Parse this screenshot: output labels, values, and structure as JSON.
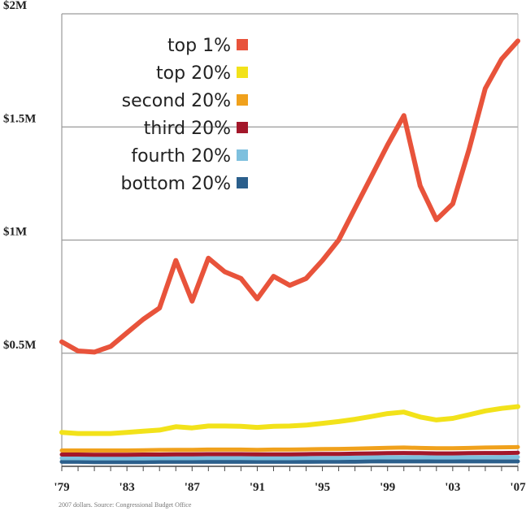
{
  "chart_data": {
    "type": "line",
    "title": "",
    "xlabel": "",
    "ylabel": "",
    "x": [
      1979,
      1980,
      1981,
      1982,
      1983,
      1984,
      1985,
      1986,
      1987,
      1988,
      1989,
      1990,
      1991,
      1992,
      1993,
      1994,
      1995,
      1996,
      1997,
      1998,
      1999,
      2000,
      2001,
      2002,
      2003,
      2004,
      2005,
      2006,
      2007
    ],
    "xlim": [
      1979,
      2007
    ],
    "ylim": [
      0,
      2000000
    ],
    "y_ticks": [
      {
        "value": 500000,
        "label": "$0.5M"
      },
      {
        "value": 1000000,
        "label": "$1M"
      },
      {
        "value": 1500000,
        "label": "$1.5M"
      },
      {
        "value": 2000000,
        "label": "$2M"
      }
    ],
    "x_ticks": [
      {
        "value": 1979,
        "label": "'79"
      },
      {
        "value": 1983,
        "label": "'83"
      },
      {
        "value": 1987,
        "label": "'87"
      },
      {
        "value": 1991,
        "label": "'91"
      },
      {
        "value": 1995,
        "label": "'95"
      },
      {
        "value": 1999,
        "label": "'99"
      },
      {
        "value": 2003,
        "label": "'03"
      },
      {
        "value": 2007,
        "label": "'07"
      }
    ],
    "grid": true,
    "legend_position": "top-right",
    "series": [
      {
        "name": "top 1%",
        "color": "#e8533b",
        "values": [
          550000,
          510000,
          505000,
          530000,
          590000,
          650000,
          700000,
          910000,
          730000,
          920000,
          860000,
          830000,
          740000,
          840000,
          800000,
          830000,
          910000,
          1000000,
          1140000,
          1280000,
          1420000,
          1550000,
          1240000,
          1090000,
          1160000,
          1400000,
          1670000,
          1800000,
          1880000
        ]
      },
      {
        "name": "top 20%",
        "color": "#f2e21a",
        "values": [
          150000,
          145000,
          145000,
          145000,
          150000,
          155000,
          160000,
          175000,
          170000,
          178000,
          178000,
          177000,
          172000,
          177000,
          178000,
          182000,
          190000,
          198000,
          208000,
          220000,
          233000,
          240000,
          218000,
          205000,
          212000,
          228000,
          245000,
          256000,
          264000
        ]
      },
      {
        "name": "second 20%",
        "color": "#f0a11c",
        "values": [
          70000,
          70000,
          70000,
          70000,
          70000,
          71000,
          72000,
          73000,
          73000,
          74000,
          74000,
          74000,
          73000,
          74000,
          74000,
          75000,
          76000,
          77000,
          78000,
          80000,
          82000,
          83000,
          81000,
          80000,
          80000,
          81000,
          83000,
          84000,
          85000
        ]
      },
      {
        "name": "third 20%",
        "color": "#a3172a",
        "values": [
          52000,
          52000,
          51000,
          51000,
          51000,
          52000,
          52000,
          53000,
          53000,
          54000,
          54000,
          54000,
          53000,
          53000,
          53000,
          54000,
          55000,
          55000,
          56000,
          57000,
          58000,
          59000,
          58000,
          57000,
          57000,
          58000,
          59000,
          59000,
          60000
        ]
      },
      {
        "name": "fourth 20%",
        "color": "#7ec0de",
        "values": [
          36000,
          36000,
          35000,
          35000,
          35000,
          35000,
          36000,
          36000,
          36000,
          37000,
          37000,
          37000,
          36000,
          36000,
          36000,
          37000,
          37000,
          37000,
          38000,
          39000,
          40000,
          40000,
          40000,
          39000,
          39000,
          40000,
          40000,
          41000,
          41000
        ]
      },
      {
        "name": "bottom 20%",
        "color": "#2b5f8c",
        "values": [
          20000,
          20000,
          19000,
          19000,
          19000,
          19000,
          20000,
          20000,
          20000,
          20000,
          20000,
          20000,
          20000,
          20000,
          20000,
          20000,
          21000,
          21000,
          21000,
          22000,
          22000,
          22000,
          22000,
          22000,
          22000,
          22000,
          22000,
          22000,
          22000
        ]
      }
    ],
    "footnote": "2007 dollars. Source: Congressional Budget Office"
  }
}
